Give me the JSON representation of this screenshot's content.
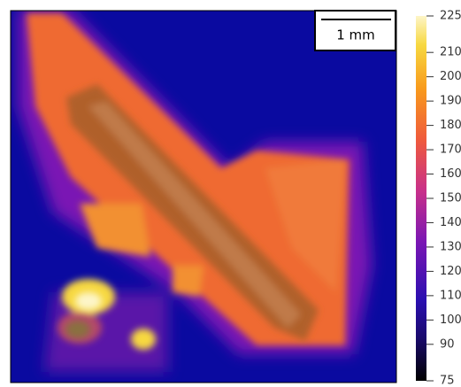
{
  "chart_data": {
    "type": "heatmap",
    "scale_bar": "1 mm",
    "ylim": [
      75,
      225
    ],
    "yticks": [
      75,
      90,
      100,
      110,
      120,
      130,
      140,
      150,
      160,
      170,
      180,
      190,
      200,
      210,
      225
    ]
  }
}
